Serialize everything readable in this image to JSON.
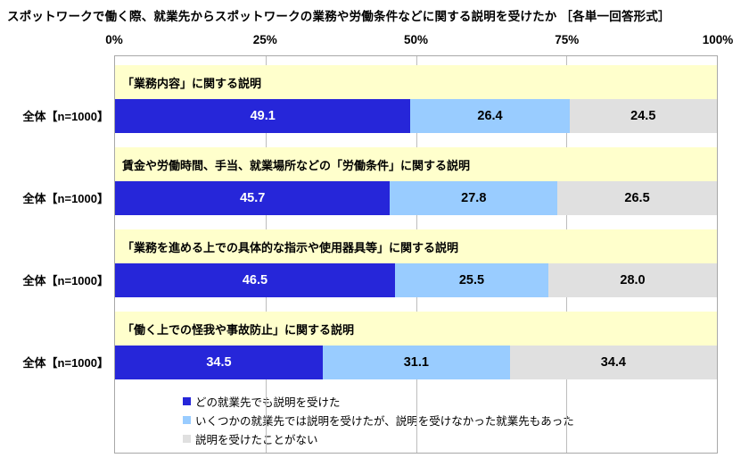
{
  "chart_data": {
    "type": "bar",
    "stacked": true,
    "orientation": "horizontal",
    "title": "スポットワークで働く際、就業先からスポットワークの業務や労働条件などに関する説明を受けたか ［各単一回答形式］",
    "x_axis": {
      "tick_labels": [
        "0%",
        "25%",
        "50%",
        "75%",
        "100%"
      ],
      "xlim": [
        0,
        100
      ],
      "gridlines_at": [
        25,
        50,
        75
      ]
    },
    "groups": [
      {
        "question": "「業務内容」に関する説明",
        "label": "全体【n=1000】",
        "values": [
          49.1,
          26.4,
          24.5
        ]
      },
      {
        "question": "賃金や労働時間、手当、就業場所などの「労働条件」に関する説明",
        "label": "全体【n=1000】",
        "values": [
          45.7,
          27.8,
          26.5
        ]
      },
      {
        "question": "「業務を進める上での具体的な指示や使用器具等」に関する説明",
        "label": "全体【n=1000】",
        "values": [
          46.5,
          25.5,
          28.0
        ]
      },
      {
        "question": "「働く上での怪我や事故防止」に関する説明",
        "label": "全体【n=1000】",
        "values": [
          34.5,
          31.1,
          34.4
        ]
      }
    ],
    "series": [
      {
        "name": "どの就業先でも説明を受けた",
        "color": "#2626D9"
      },
      {
        "name": "いくつかの就業先では説明を受けたが、説明を受けなかった就業先もあった",
        "color": "#99CCFF"
      },
      {
        "name": "説明を受けたことがない",
        "color": "#E0E0E0"
      }
    ],
    "styles": {
      "band_bg": "#FFFFCC",
      "first_segment_text": "#FFFFFF",
      "other_segment_text": "#000000",
      "grid_color": "#BDBDBD"
    }
  }
}
